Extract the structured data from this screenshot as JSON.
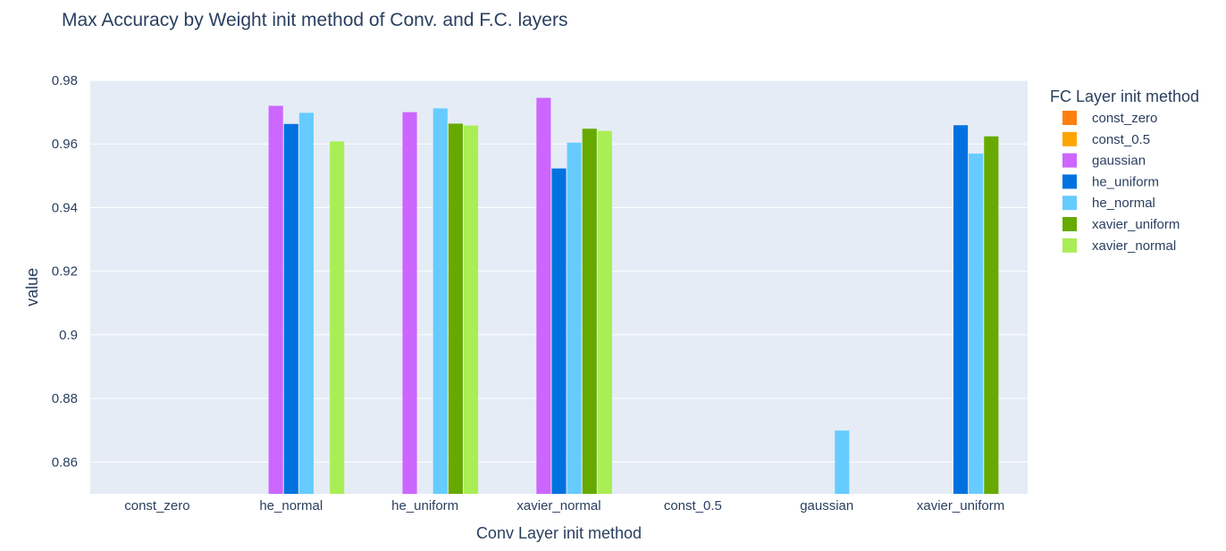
{
  "chart_data": {
    "type": "bar",
    "title": "Max Accuracy by Weight init method of Conv. and F.C. layers",
    "xlabel": "Conv Layer init method",
    "ylabel": "value",
    "ylim": [
      0.85,
      0.98
    ],
    "yticks": [
      0.86,
      0.88,
      0.9,
      0.92,
      0.94,
      0.96,
      0.98
    ],
    "ytick_labels": [
      "0.86",
      "0.88",
      "0.9",
      "0.92",
      "0.94",
      "0.96",
      "0.98"
    ],
    "grid": true,
    "legend_title": "FC Layer init method",
    "legend_position": "right",
    "categories": [
      "const_zero",
      "he_normal",
      "he_uniform",
      "xavier_normal",
      "const_0.5",
      "gaussian",
      "xavier_uniform"
    ],
    "series": [
      {
        "name": "const_zero",
        "color": "#ff7f0e",
        "values": [
          null,
          null,
          null,
          null,
          null,
          null,
          null
        ]
      },
      {
        "name": "const_0.5",
        "color": "#ffa500",
        "values": [
          null,
          null,
          null,
          null,
          null,
          null,
          null
        ]
      },
      {
        "name": "gaussian",
        "color": "#cc66ff",
        "values": [
          null,
          0.972,
          0.97,
          0.9745,
          null,
          null,
          null
        ]
      },
      {
        "name": "he_uniform",
        "color": "#0072e0",
        "values": [
          null,
          0.9663,
          null,
          0.9523,
          null,
          null,
          0.9659
        ]
      },
      {
        "name": "he_normal",
        "color": "#66ccff",
        "values": [
          null,
          0.9698,
          0.9712,
          0.9604,
          null,
          0.8699,
          0.957
        ]
      },
      {
        "name": "xavier_uniform",
        "color": "#66aa00",
        "values": [
          null,
          null,
          0.9664,
          0.9648,
          null,
          null,
          0.9624
        ]
      },
      {
        "name": "xavier_normal",
        "color": "#aaee55",
        "values": [
          null,
          0.9608,
          0.9658,
          0.9641,
          null,
          null,
          null
        ]
      }
    ]
  }
}
